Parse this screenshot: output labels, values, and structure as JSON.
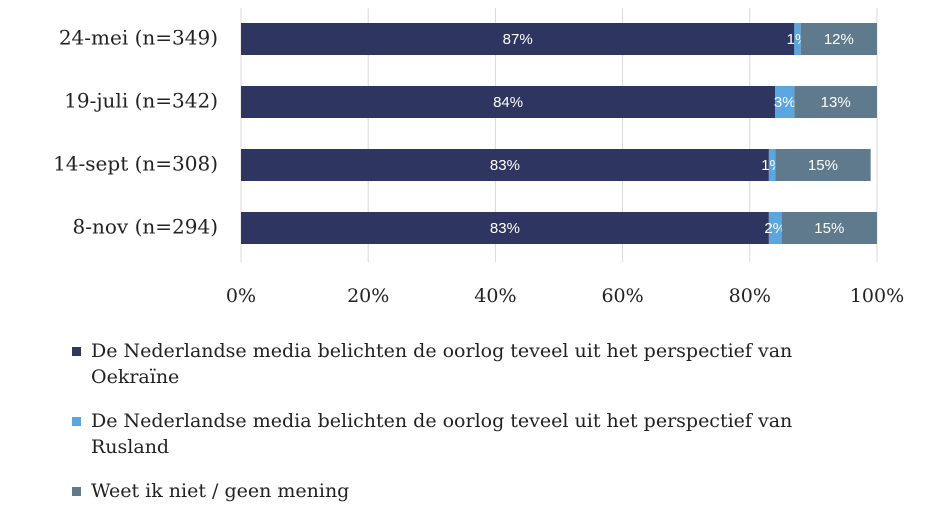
{
  "chart_data": {
    "type": "bar",
    "orientation": "horizontal",
    "stacked": true,
    "categories": [
      "24-mei (n=349)",
      "19-juli (n=342)",
      "14-sept (n=308)",
      "8-nov (n=294)"
    ],
    "series": [
      {
        "name": "De Nederlandse media belichten de oorlog teveel uit het perspectief van Oekraïne",
        "color": "#2e3560",
        "values": [
          87,
          84,
          83,
          83
        ],
        "value_labels": [
          "87%",
          "84%",
          "83%",
          "83%"
        ]
      },
      {
        "name": "De Nederlandse media belichten de oorlog teveel uit het perspectief van Rusland",
        "color": "#5aa6e0",
        "values": [
          1,
          3,
          1,
          2
        ],
        "value_labels": [
          "1%",
          "3%",
          "1%",
          "2%"
        ]
      },
      {
        "name": "Weet ik niet / geen mening",
        "color": "#5f7a8c",
        "values": [
          12,
          13,
          15,
          15
        ],
        "value_labels": [
          "12%",
          "13%",
          "15%",
          "15%"
        ]
      }
    ],
    "xlim": [
      0,
      100
    ],
    "xticks": [
      {
        "value": 0,
        "label": "0%"
      },
      {
        "value": 20,
        "label": "20%"
      },
      {
        "value": 40,
        "label": "40%"
      },
      {
        "value": 60,
        "label": "60%"
      },
      {
        "value": 80,
        "label": "80%"
      },
      {
        "value": 100,
        "label": "100%"
      }
    ],
    "grid": true
  }
}
